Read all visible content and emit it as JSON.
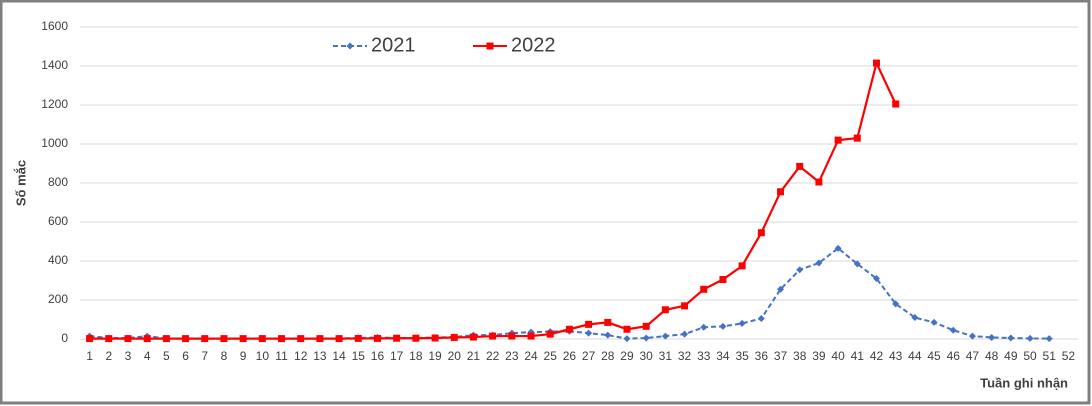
{
  "chart_data": {
    "type": "line",
    "y_label": "Số mắc",
    "x_label": "Tuần ghi nhận",
    "categories": [
      "1",
      "2",
      "3",
      "4",
      "5",
      "6",
      "7",
      "8",
      "9",
      "10",
      "11",
      "12",
      "13",
      "14",
      "15",
      "16",
      "17",
      "18",
      "19",
      "20",
      "21",
      "22",
      "23",
      "24",
      "25",
      "26",
      "27",
      "28",
      "29",
      "30",
      "31",
      "32",
      "33",
      "34",
      "35",
      "36",
      "37",
      "38",
      "39",
      "40",
      "41",
      "42",
      "43",
      "44",
      "45",
      "46",
      "47",
      "48",
      "49",
      "50",
      "51",
      "52"
    ],
    "series": [
      {
        "name": "2021",
        "color": "#4472c4",
        "dashed": true,
        "marker": "diamond",
        "values": [
          15,
          5,
          5,
          15,
          3,
          2,
          2,
          2,
          2,
          3,
          2,
          2,
          2,
          3,
          5,
          8,
          5,
          5,
          8,
          10,
          20,
          20,
          30,
          35,
          38,
          40,
          30,
          20,
          2,
          5,
          15,
          25,
          60,
          65,
          80,
          105,
          255,
          355,
          390,
          465,
          385,
          310,
          180,
          110,
          85,
          45,
          15,
          8,
          5,
          3,
          2,
          null
        ]
      },
      {
        "name": "2022",
        "color": "#ff0000",
        "dashed": false,
        "marker": "square",
        "values": [
          2,
          2,
          2,
          2,
          2,
          2,
          2,
          2,
          2,
          2,
          2,
          2,
          2,
          2,
          3,
          3,
          4,
          4,
          5,
          8,
          10,
          15,
          15,
          15,
          25,
          50,
          75,
          85,
          50,
          65,
          150,
          170,
          255,
          305,
          375,
          545,
          755,
          885,
          805,
          1020,
          1030,
          1415,
          1205,
          null,
          null,
          null,
          null,
          null,
          null,
          null,
          null,
          null
        ]
      }
    ],
    "ylim": [
      0,
      1600
    ],
    "yticks": [
      0,
      200,
      400,
      600,
      800,
      1000,
      1200,
      1400,
      1600
    ],
    "grid": true,
    "legend": "top"
  }
}
